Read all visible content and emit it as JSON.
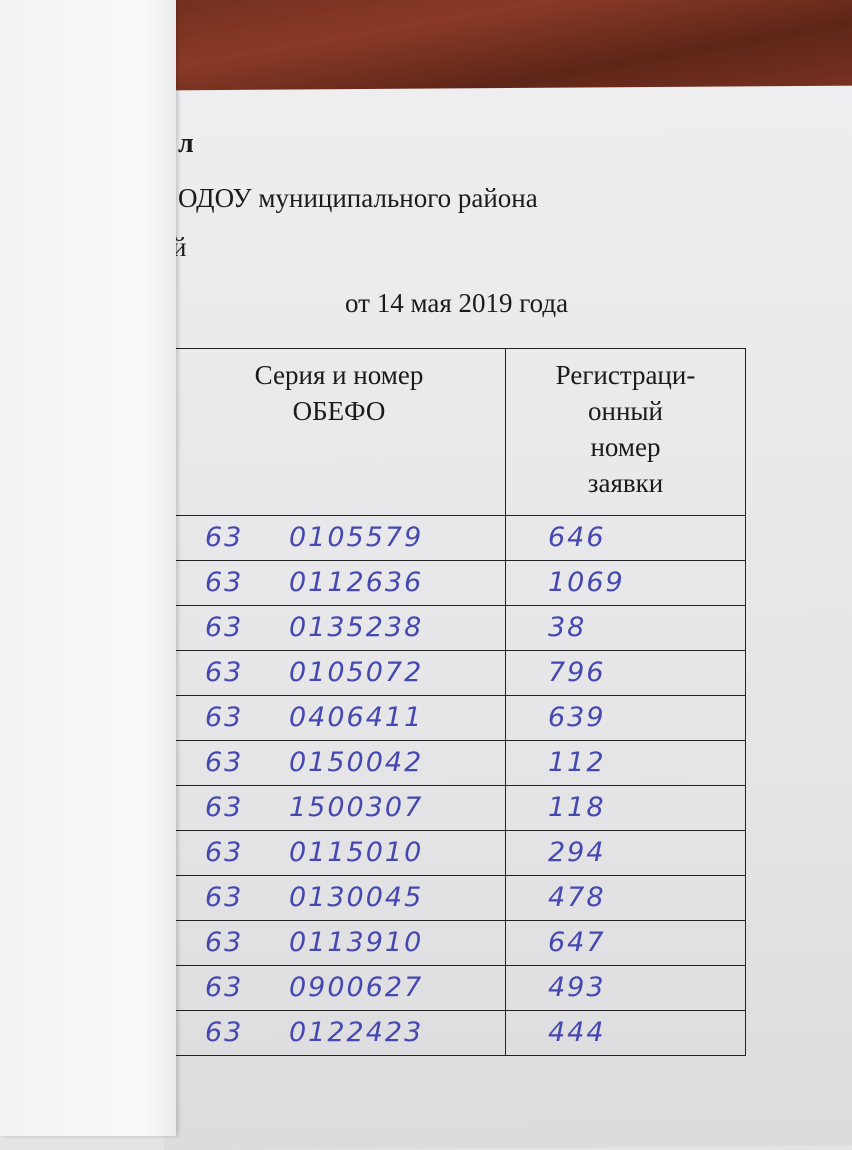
{
  "header": {
    "fragment_1": "л",
    "fragment_2": "ОДОУ муниципального района",
    "fragment_3": "й",
    "date": "от 14 мая 2019 года"
  },
  "table": {
    "columns": [
      "Серия и номер ОБЕФО",
      "Регистраци-онный номер заявки"
    ],
    "col1_lines": [
      "Серия и номер",
      "ОБЕФО"
    ],
    "col2_lines": [
      "Регистраци-",
      "онный",
      "номер",
      "заявки"
    ],
    "rows": [
      {
        "series": "63",
        "number": "0105579",
        "reg": "646"
      },
      {
        "series": "63",
        "number": "0112636",
        "reg": "1069"
      },
      {
        "series": "63",
        "number": "0135238",
        "reg": "38"
      },
      {
        "series": "63",
        "number": "0105072",
        "reg": "796"
      },
      {
        "series": "63",
        "number": "0406411",
        "reg": "639"
      },
      {
        "series": "63",
        "number": "0150042",
        "reg": "112"
      },
      {
        "series": "63",
        "number": "1500307",
        "reg": "118"
      },
      {
        "series": "63",
        "number": "0115010",
        "reg": "294"
      },
      {
        "series": "63",
        "number": "0130045",
        "reg": "478"
      },
      {
        "series": "63",
        "number": "0113910",
        "reg": "647"
      },
      {
        "series": "63",
        "number": "0900627",
        "reg": "493"
      },
      {
        "series": "63",
        "number": "0122423",
        "reg": "444"
      }
    ]
  },
  "colors": {
    "ink": "#4548b0",
    "wood": "#7b3322"
  }
}
